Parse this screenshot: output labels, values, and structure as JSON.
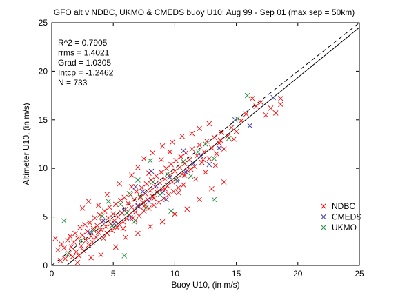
{
  "chart_data": {
    "type": "scatter",
    "title": "GFO alt v NDBC, UKMO & CMEDS buoy U10: Aug 99 - Sep 01 (max sep = 50km)",
    "xlabel": "Buoy U10, (in m/s)",
    "ylabel": "Altimeter U10, (in m/s)",
    "xlim": [
      0,
      25
    ],
    "ylim": [
      0,
      25
    ],
    "xticks": [
      "0",
      "5",
      "10",
      "15",
      "20",
      "25"
    ],
    "yticks": [
      "0",
      "5",
      "10",
      "15",
      "20",
      "25"
    ],
    "grid": false,
    "legend_position": "bottom-right",
    "marker": "x",
    "stats": [
      "R^2  =  0.7905",
      "rrms =  1.4021",
      "Grad  =  1.0305",
      "Intcp  =  -1.2462",
      "N       =  733"
    ],
    "lines": [
      {
        "name": "regression",
        "style": "solid",
        "slope": 1.0305,
        "intercept": -1.2462
      },
      {
        "name": "one-to-one",
        "style": "dashed",
        "slope": 1,
        "intercept": 0
      }
    ],
    "series": [
      {
        "name": "NDBC",
        "color": "#ff0000",
        "points": [
          [
            0.3,
            2.8
          ],
          [
            0.5,
            1.6
          ],
          [
            0.7,
            0.5
          ],
          [
            0.8,
            2.2
          ],
          [
            1.0,
            1.8
          ],
          [
            1.1,
            0.7
          ],
          [
            1.3,
            2.6
          ],
          [
            1.4,
            1.2
          ],
          [
            1.5,
            3.0
          ],
          [
            1.6,
            1.9
          ],
          [
            1.7,
            0.9
          ],
          [
            1.8,
            2.4
          ],
          [
            1.9,
            3.3
          ],
          [
            2.0,
            1.4
          ],
          [
            2.1,
            2.8
          ],
          [
            2.2,
            1.0
          ],
          [
            2.3,
            3.9
          ],
          [
            2.4,
            2.0
          ],
          [
            2.5,
            3.1
          ],
          [
            2.6,
            1.5
          ],
          [
            2.7,
            4.2
          ],
          [
            2.8,
            2.6
          ],
          [
            2.9,
            3.5
          ],
          [
            3.0,
            2.1
          ],
          [
            3.1,
            4.4
          ],
          [
            3.2,
            3.0
          ],
          [
            3.3,
            2.4
          ],
          [
            3.4,
            3.8
          ],
          [
            3.5,
            4.9
          ],
          [
            3.6,
            2.9
          ],
          [
            3.7,
            4.1
          ],
          [
            3.8,
            3.4
          ],
          [
            3.9,
            5.2
          ],
          [
            4.0,
            3.7
          ],
          [
            4.1,
            4.5
          ],
          [
            4.2,
            2.8
          ],
          [
            4.3,
            5.6
          ],
          [
            4.4,
            4.0
          ],
          [
            4.5,
            3.3
          ],
          [
            4.6,
            4.9
          ],
          [
            4.7,
            6.0
          ],
          [
            4.8,
            4.3
          ],
          [
            4.9,
            3.6
          ],
          [
            5.0,
            5.3
          ],
          [
            5.1,
            4.6
          ],
          [
            5.2,
            6.3
          ],
          [
            5.3,
            3.9
          ],
          [
            5.4,
            5.0
          ],
          [
            5.5,
            4.2
          ],
          [
            5.6,
            6.7
          ],
          [
            5.7,
            5.4
          ],
          [
            5.8,
            4.5
          ],
          [
            5.9,
            7.0
          ],
          [
            6.0,
            5.8
          ],
          [
            6.1,
            4.8
          ],
          [
            6.2,
            6.4
          ],
          [
            6.3,
            5.2
          ],
          [
            6.4,
            7.3
          ],
          [
            6.5,
            6.0
          ],
          [
            6.6,
            4.9
          ],
          [
            6.7,
            6.8
          ],
          [
            6.8,
            5.5
          ],
          [
            6.9,
            7.6
          ],
          [
            7.0,
            6.2
          ],
          [
            7.1,
            5.1
          ],
          [
            7.2,
            7.0
          ],
          [
            7.3,
            8.0
          ],
          [
            7.4,
            6.5
          ],
          [
            7.5,
            5.6
          ],
          [
            7.6,
            7.4
          ],
          [
            7.7,
            8.4
          ],
          [
            7.8,
            6.8
          ],
          [
            7.9,
            5.9
          ],
          [
            8.0,
            7.7
          ],
          [
            8.1,
            8.8
          ],
          [
            8.2,
            7.1
          ],
          [
            8.3,
            6.2
          ],
          [
            8.4,
            8.1
          ],
          [
            8.5,
            9.2
          ],
          [
            8.6,
            7.5
          ],
          [
            8.7,
            6.5
          ],
          [
            8.8,
            8.5
          ],
          [
            8.9,
            9.6
          ],
          [
            9.0,
            7.8
          ],
          [
            9.1,
            6.9
          ],
          [
            9.2,
            8.9
          ],
          [
            9.3,
            10.0
          ],
          [
            9.4,
            8.2
          ],
          [
            9.5,
            7.3
          ],
          [
            9.6,
            9.3
          ],
          [
            9.7,
            10.4
          ],
          [
            9.8,
            8.6
          ],
          [
            9.9,
            7.6
          ],
          [
            10.0,
            9.7
          ],
          [
            10.1,
            10.8
          ],
          [
            10.2,
            9.0
          ],
          [
            10.3,
            8.0
          ],
          [
            10.4,
            10.1
          ],
          [
            10.5,
            11.2
          ],
          [
            10.6,
            9.4
          ],
          [
            10.7,
            8.3
          ],
          [
            10.8,
            10.5
          ],
          [
            10.9,
            11.6
          ],
          [
            11.0,
            9.8
          ],
          [
            11.2,
            10.9
          ],
          [
            11.4,
            12.0
          ],
          [
            11.6,
            10.2
          ],
          [
            11.8,
            11.3
          ],
          [
            12.0,
            12.4
          ],
          [
            12.2,
            10.6
          ],
          [
            12.4,
            11.7
          ],
          [
            12.6,
            12.8
          ],
          [
            12.8,
            11.0
          ],
          [
            13.0,
            12.1
          ],
          [
            13.2,
            13.2
          ],
          [
            13.4,
            11.5
          ],
          [
            13.6,
            12.6
          ],
          [
            13.8,
            13.7
          ],
          [
            14.0,
            12.0
          ],
          [
            14.3,
            13.3
          ],
          [
            14.6,
            14.2
          ],
          [
            15.0,
            13.8
          ],
          [
            15.4,
            14.9
          ],
          [
            15.8,
            15.6
          ],
          [
            16.3,
            17.2
          ],
          [
            16.6,
            16.4
          ],
          [
            17.0,
            16.8
          ],
          [
            17.4,
            15.5
          ],
          [
            17.8,
            16.2
          ],
          [
            18.2,
            15.7
          ],
          [
            18.6,
            16.6
          ],
          [
            18.6,
            17.2
          ],
          [
            2.5,
            5.9
          ],
          [
            3.0,
            6.6
          ],
          [
            3.8,
            6.2
          ],
          [
            4.5,
            7.3
          ],
          [
            5.5,
            8.4
          ],
          [
            6.5,
            9.3
          ],
          [
            7.0,
            10.1
          ],
          [
            7.5,
            11.0
          ],
          [
            8.2,
            11.6
          ],
          [
            9.0,
            12.3
          ],
          [
            9.8,
            12.7
          ],
          [
            10.6,
            13.3
          ],
          [
            11.4,
            13.6
          ],
          [
            12.0,
            14.1
          ],
          [
            12.8,
            14.6
          ],
          [
            6.0,
            2.9
          ],
          [
            7.0,
            3.3
          ],
          [
            8.0,
            4.0
          ],
          [
            9.0,
            4.5
          ],
          [
            10.0,
            5.3
          ],
          [
            11.0,
            5.8
          ],
          [
            12.0,
            6.8
          ],
          [
            13.0,
            7.9
          ],
          [
            14.0,
            8.6
          ],
          [
            2.1,
            0.3
          ],
          [
            3.2,
            0.8
          ],
          [
            4.0,
            1.1
          ],
          [
            5.2,
            1.9
          ],
          [
            6.5,
            8.1
          ],
          [
            7.9,
            9.5
          ],
          [
            8.9,
            10.9
          ],
          [
            9.6,
            11.7
          ],
          [
            10.3,
            7.5
          ],
          [
            11.7,
            8.9
          ],
          [
            12.5,
            9.6
          ],
          [
            13.3,
            10.3
          ],
          [
            5.8,
            3.8
          ],
          [
            6.8,
            4.6
          ],
          [
            7.5,
            6.1
          ],
          [
            8.3,
            6.9
          ],
          [
            9.2,
            7.9
          ],
          [
            10.8,
            9.3
          ],
          [
            11.3,
            9.9
          ],
          [
            12.3,
            10.9
          ],
          [
            13.7,
            12.9
          ],
          [
            14.8,
            13.0
          ]
        ]
      },
      {
        "name": "CMEDS",
        "color": "#3a3aa8",
        "points": [
          [
            3.1,
            3.4
          ],
          [
            4.2,
            4.6
          ],
          [
            5.1,
            4.3
          ],
          [
            5.9,
            5.7
          ],
          [
            6.4,
            4.9
          ],
          [
            7.0,
            6.1
          ],
          [
            7.4,
            7.6
          ],
          [
            7.9,
            6.6
          ],
          [
            8.5,
            8.2
          ],
          [
            9.0,
            7.5
          ],
          [
            9.6,
            9.1
          ],
          [
            10.2,
            8.7
          ],
          [
            10.9,
            9.6
          ],
          [
            11.5,
            10.5
          ],
          [
            12.1,
            11.3
          ],
          [
            12.8,
            10.4
          ],
          [
            13.6,
            12.1
          ],
          [
            14.9,
            15.0
          ],
          [
            16.1,
            14.4
          ],
          [
            18.0,
            17.3
          ],
          [
            6.8,
            8.1
          ],
          [
            8.1,
            9.7
          ],
          [
            9.3,
            6.8
          ],
          [
            10.7,
            11.8
          ]
        ]
      },
      {
        "name": "UKMO",
        "color": "#1e8c3c",
        "points": [
          [
            1.0,
            4.6
          ],
          [
            1.3,
            1.1
          ],
          [
            2.4,
            2.6
          ],
          [
            3.4,
            3.6
          ],
          [
            4.1,
            5.1
          ],
          [
            4.9,
            4.1
          ],
          [
            5.6,
            6.3
          ],
          [
            6.1,
            5.4
          ],
          [
            6.7,
            4.5
          ],
          [
            7.2,
            7.1
          ],
          [
            7.7,
            6.0
          ],
          [
            8.2,
            8.6
          ],
          [
            8.8,
            7.3
          ],
          [
            9.4,
            9.4
          ],
          [
            10.1,
            8.9
          ],
          [
            10.7,
            10.7
          ],
          [
            11.3,
            9.2
          ],
          [
            11.9,
            11.7
          ],
          [
            12.5,
            12.5
          ],
          [
            13.2,
            11.0
          ],
          [
            14.4,
            13.1
          ],
          [
            15.1,
            15.1
          ],
          [
            15.9,
            17.5
          ],
          [
            5.9,
            1.0
          ],
          [
            9.7,
            5.6
          ],
          [
            13.2,
            6.8
          ],
          [
            7.0,
            8.8
          ],
          [
            8.0,
            10.8
          ],
          [
            6.3,
            7.4
          ],
          [
            4.6,
            6.6
          ]
        ]
      }
    ]
  }
}
